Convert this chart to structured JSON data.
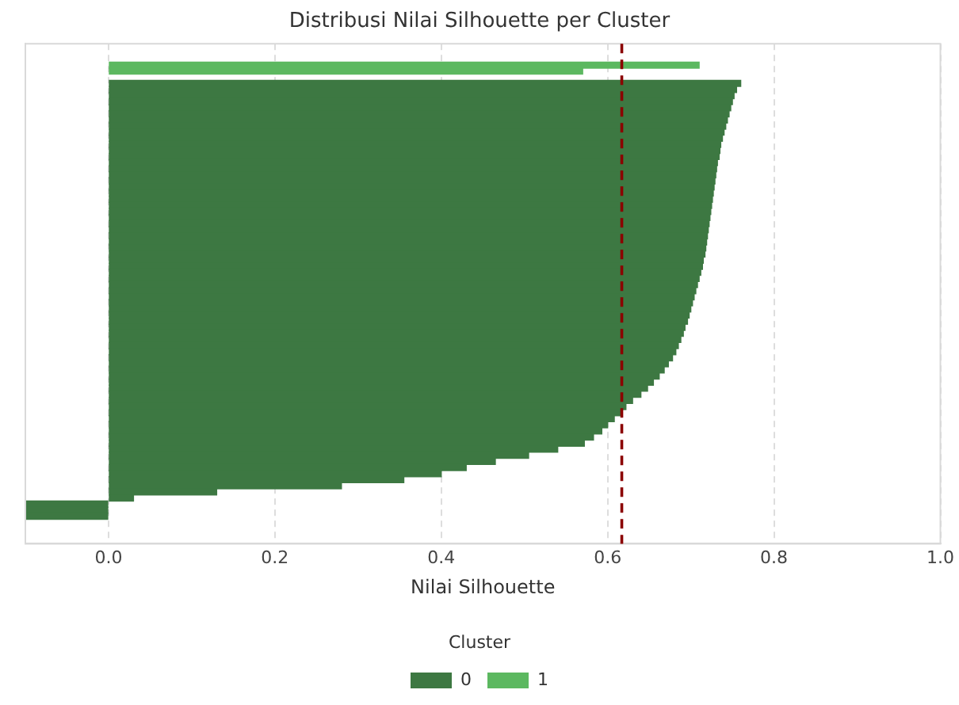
{
  "chart_data": {
    "type": "bar",
    "orientation": "horizontal",
    "title": "Distribusi Nilai Silhouette per Cluster",
    "xlabel": "Nilai Silhouette",
    "legend_title": "Cluster",
    "legend": "bottom",
    "grid": "x",
    "tick_labels": "x",
    "categories": [
      null,
      null,
      null,
      null,
      null,
      null,
      null,
      null,
      null,
      null,
      null,
      null,
      null,
      null,
      null,
      null,
      null,
      null,
      null,
      null,
      null,
      null,
      null,
      null,
      null,
      null,
      null,
      null,
      null,
      null,
      null,
      null,
      null,
      null,
      null,
      null,
      null,
      null,
      null,
      null,
      null,
      null,
      null,
      null,
      null,
      null,
      null,
      null,
      null,
      null,
      null,
      null,
      null,
      null,
      null,
      null,
      null,
      null,
      null,
      null,
      null,
      null,
      null,
      null,
      null,
      null,
      null,
      null,
      null,
      null,
      null,
      null,
      null,
      null,
      null,
      null,
      null,
      null,
      null,
      null,
      null,
      null
    ],
    "series": [
      {
        "name": "0",
        "color": "#3d7842",
        "values": [
          null,
          null,
          null,
          null,
          null,
          null,
          0.76,
          0.755,
          0.752,
          0.75,
          0.748,
          0.746,
          0.744,
          0.742,
          0.74,
          0.738,
          0.736,
          0.735,
          0.734,
          0.732,
          0.731,
          0.73,
          0.729,
          0.728,
          0.727,
          0.726,
          0.725,
          0.724,
          0.723,
          0.722,
          0.721,
          0.72,
          0.719,
          0.718,
          0.717,
          0.715,
          0.714,
          0.712,
          0.71,
          0.708,
          0.706,
          0.704,
          0.702,
          0.7,
          0.698,
          0.696,
          0.693,
          0.691,
          0.688,
          0.685,
          0.682,
          0.678,
          0.673,
          0.668,
          0.662,
          0.655,
          0.648,
          0.64,
          0.63,
          0.622,
          0.615,
          0.608,
          0.6,
          0.593,
          0.583,
          0.572,
          0.54,
          0.505,
          0.465,
          0.43,
          0.4,
          0.355,
          0.28,
          0.13,
          0.03,
          -0.1,
          -0.1,
          -0.1,
          null,
          null,
          null,
          null
        ]
      },
      {
        "name": "1",
        "color": "#5cb860",
        "values": [
          null,
          null,
          null,
          0.71,
          0.57,
          null,
          null,
          null,
          null,
          null,
          null,
          null,
          null,
          null,
          null,
          null,
          null,
          null,
          null,
          null,
          null,
          null,
          null,
          null,
          null,
          null,
          null,
          null,
          null,
          null,
          null,
          null,
          null,
          null,
          null,
          null,
          null,
          null,
          null,
          null,
          null,
          null,
          null,
          null,
          null,
          null,
          null,
          null,
          null,
          null,
          null,
          null,
          null,
          null,
          null,
          null,
          null,
          null,
          null,
          null,
          null,
          null,
          null,
          null,
          null,
          null,
          null,
          null,
          null,
          null,
          null,
          null,
          null,
          null,
          null,
          null,
          null,
          null,
          null,
          null,
          null,
          null
        ]
      }
    ],
    "xlim": [
      -0.1,
      1.0
    ],
    "xticks": [
      {
        "value": 0,
        "label": "0.0"
      },
      0.2,
      0.4,
      0.6,
      0.8,
      {
        "value": 1,
        "label": "1.0"
      }
    ],
    "ref_lines": [
      {
        "axis": "x",
        "value": 0.617,
        "color": "#8b0000",
        "line_style": "dashed"
      }
    ]
  }
}
